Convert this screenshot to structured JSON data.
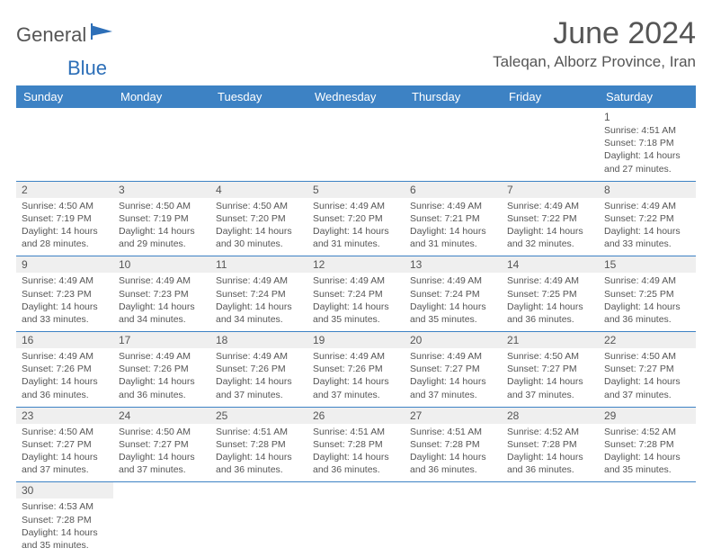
{
  "brand": {
    "general": "General",
    "blue": "Blue"
  },
  "title": "June 2024",
  "location": "Taleqan, Alborz Province, Iran",
  "colors": {
    "header_bg": "#3d82c4",
    "header_text": "#ffffff",
    "border": "#3d82c4",
    "shaded_bg": "#f0f0f0",
    "text": "#555555",
    "brand_blue": "#2d6fb8"
  },
  "day_headers": [
    "Sunday",
    "Monday",
    "Tuesday",
    "Wednesday",
    "Thursday",
    "Friday",
    "Saturday"
  ],
  "first_weekday_index": 6,
  "days_in_month": 30,
  "days": {
    "1": {
      "sunrise": "4:51 AM",
      "sunset": "7:18 PM",
      "daylight": "14 hours and 27 minutes."
    },
    "2": {
      "sunrise": "4:50 AM",
      "sunset": "7:19 PM",
      "daylight": "14 hours and 28 minutes."
    },
    "3": {
      "sunrise": "4:50 AM",
      "sunset": "7:19 PM",
      "daylight": "14 hours and 29 minutes."
    },
    "4": {
      "sunrise": "4:50 AM",
      "sunset": "7:20 PM",
      "daylight": "14 hours and 30 minutes."
    },
    "5": {
      "sunrise": "4:49 AM",
      "sunset": "7:20 PM",
      "daylight": "14 hours and 31 minutes."
    },
    "6": {
      "sunrise": "4:49 AM",
      "sunset": "7:21 PM",
      "daylight": "14 hours and 31 minutes."
    },
    "7": {
      "sunrise": "4:49 AM",
      "sunset": "7:22 PM",
      "daylight": "14 hours and 32 minutes."
    },
    "8": {
      "sunrise": "4:49 AM",
      "sunset": "7:22 PM",
      "daylight": "14 hours and 33 minutes."
    },
    "9": {
      "sunrise": "4:49 AM",
      "sunset": "7:23 PM",
      "daylight": "14 hours and 33 minutes."
    },
    "10": {
      "sunrise": "4:49 AM",
      "sunset": "7:23 PM",
      "daylight": "14 hours and 34 minutes."
    },
    "11": {
      "sunrise": "4:49 AM",
      "sunset": "7:24 PM",
      "daylight": "14 hours and 34 minutes."
    },
    "12": {
      "sunrise": "4:49 AM",
      "sunset": "7:24 PM",
      "daylight": "14 hours and 35 minutes."
    },
    "13": {
      "sunrise": "4:49 AM",
      "sunset": "7:24 PM",
      "daylight": "14 hours and 35 minutes."
    },
    "14": {
      "sunrise": "4:49 AM",
      "sunset": "7:25 PM",
      "daylight": "14 hours and 36 minutes."
    },
    "15": {
      "sunrise": "4:49 AM",
      "sunset": "7:25 PM",
      "daylight": "14 hours and 36 minutes."
    },
    "16": {
      "sunrise": "4:49 AM",
      "sunset": "7:26 PM",
      "daylight": "14 hours and 36 minutes."
    },
    "17": {
      "sunrise": "4:49 AM",
      "sunset": "7:26 PM",
      "daylight": "14 hours and 36 minutes."
    },
    "18": {
      "sunrise": "4:49 AM",
      "sunset": "7:26 PM",
      "daylight": "14 hours and 37 minutes."
    },
    "19": {
      "sunrise": "4:49 AM",
      "sunset": "7:26 PM",
      "daylight": "14 hours and 37 minutes."
    },
    "20": {
      "sunrise": "4:49 AM",
      "sunset": "7:27 PM",
      "daylight": "14 hours and 37 minutes."
    },
    "21": {
      "sunrise": "4:50 AM",
      "sunset": "7:27 PM",
      "daylight": "14 hours and 37 minutes."
    },
    "22": {
      "sunrise": "4:50 AM",
      "sunset": "7:27 PM",
      "daylight": "14 hours and 37 minutes."
    },
    "23": {
      "sunrise": "4:50 AM",
      "sunset": "7:27 PM",
      "daylight": "14 hours and 37 minutes."
    },
    "24": {
      "sunrise": "4:50 AM",
      "sunset": "7:27 PM",
      "daylight": "14 hours and 37 minutes."
    },
    "25": {
      "sunrise": "4:51 AM",
      "sunset": "7:28 PM",
      "daylight": "14 hours and 36 minutes."
    },
    "26": {
      "sunrise": "4:51 AM",
      "sunset": "7:28 PM",
      "daylight": "14 hours and 36 minutes."
    },
    "27": {
      "sunrise": "4:51 AM",
      "sunset": "7:28 PM",
      "daylight": "14 hours and 36 minutes."
    },
    "28": {
      "sunrise": "4:52 AM",
      "sunset": "7:28 PM",
      "daylight": "14 hours and 36 minutes."
    },
    "29": {
      "sunrise": "4:52 AM",
      "sunset": "7:28 PM",
      "daylight": "14 hours and 35 minutes."
    },
    "30": {
      "sunrise": "4:53 AM",
      "sunset": "7:28 PM",
      "daylight": "14 hours and 35 minutes."
    }
  },
  "labels": {
    "sunrise": "Sunrise:",
    "sunset": "Sunset:",
    "daylight": "Daylight:"
  }
}
